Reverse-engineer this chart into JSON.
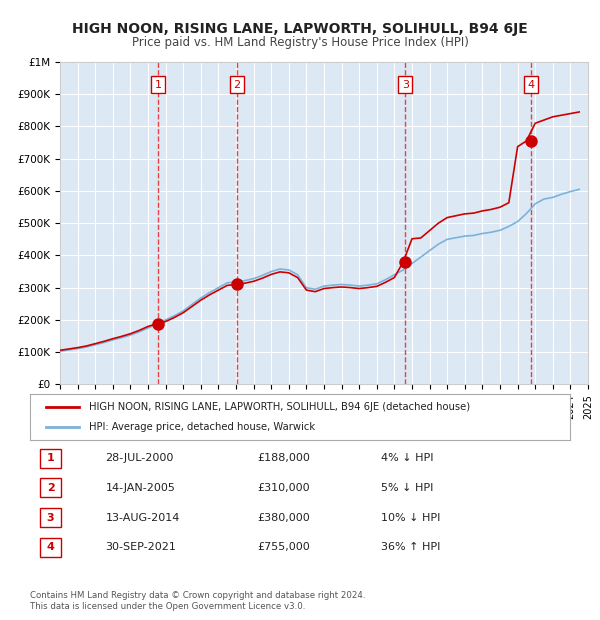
{
  "title": "HIGH NOON, RISING LANE, LAPWORTH, SOLIHULL, B94 6JE",
  "subtitle": "Price paid vs. HM Land Registry's House Price Index (HPI)",
  "xlabel": "",
  "ylabel": "",
  "background_color": "#ffffff",
  "plot_bg_color": "#dce9f5",
  "grid_color": "#ffffff",
  "xmin": 1995,
  "xmax": 2025,
  "ymin": 0,
  "ymax": 1000000,
  "yticks": [
    0,
    100000,
    200000,
    300000,
    400000,
    500000,
    600000,
    700000,
    800000,
    900000,
    1000000
  ],
  "ytick_labels": [
    "£0",
    "£100K",
    "£200K",
    "£300K",
    "£400K",
    "£500K",
    "£600K",
    "£700K",
    "£800K",
    "£900K",
    "£1M"
  ],
  "sale_dates": [
    2000.57,
    2005.04,
    2014.62,
    2021.75
  ],
  "sale_prices": [
    188000,
    310000,
    380000,
    755000
  ],
  "sale_labels": [
    "1",
    "2",
    "3",
    "4"
  ],
  "vline_color": "#e83030",
  "vline_style": "--",
  "dot_color": "#cc0000",
  "dot_size": 8,
  "hpi_line_color": "#7ab3d9",
  "property_line_color": "#cc0000",
  "legend_property": "HIGH NOON, RISING LANE, LAPWORTH, SOLIHULL, B94 6JE (detached house)",
  "legend_hpi": "HPI: Average price, detached house, Warwick",
  "table_rows": [
    [
      "1",
      "28-JUL-2000",
      "£188,000",
      "4% ↓ HPI"
    ],
    [
      "2",
      "14-JAN-2005",
      "£310,000",
      "5% ↓ HPI"
    ],
    [
      "3",
      "13-AUG-2014",
      "£380,000",
      "10% ↓ HPI"
    ],
    [
      "4",
      "30-SEP-2021",
      "£755,000",
      "36% ↑ HPI"
    ]
  ],
  "footnote": "Contains HM Land Registry data © Crown copyright and database right 2024.\nThis data is licensed under the Open Government Licence v3.0.",
  "xticks": [
    1995,
    1996,
    1997,
    1998,
    1999,
    2000,
    2001,
    2002,
    2003,
    2004,
    2005,
    2006,
    2007,
    2008,
    2009,
    2010,
    2011,
    2012,
    2013,
    2014,
    2015,
    2016,
    2017,
    2018,
    2019,
    2020,
    2021,
    2022,
    2023,
    2024,
    2025
  ]
}
